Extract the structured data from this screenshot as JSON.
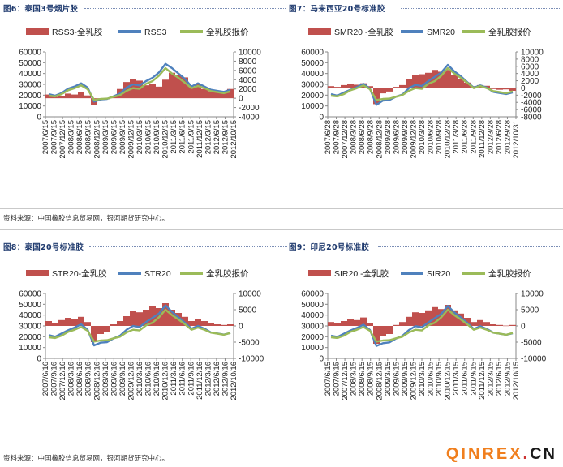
{
  "figures": [
    {
      "label": "图6：泰国3号烟片胶",
      "chart_index": 0
    },
    {
      "label": "图7：马来西亚20号标准胶",
      "chart_index": 1
    },
    {
      "label": "图8：泰国20号标准胶",
      "chart_index": 2
    },
    {
      "label": "图9：印尼20号标准胶",
      "chart_index": 3
    }
  ],
  "source_top": "资料来源：中国橡胶信息贸易网，银河期货研究中心。",
  "source_bottom": "资料来源：中国橡胶信息贸易网，银河期货研究中心。",
  "watermark": {
    "brand": "QINREX",
    "dot": ".",
    "tld": "CN"
  },
  "colors": {
    "spread_bar": "#c0504d",
    "grade_line": "#4f81bd",
    "latex_line": "#9bbb59"
  },
  "chart_data": [
    {
      "type": "bar+line",
      "legend_position": "top",
      "legend": [
        "RSS3-全乳胶",
        "RSS3",
        "全乳胶报价"
      ],
      "x_tick_labels": [
        "2007/6/15",
        "2007/9/15",
        "2007/12/15",
        "2008/3/15",
        "2008/6/15",
        "2008/9/15",
        "2008/12/15",
        "2009/3/15",
        "2009/6/15",
        "2009/9/15",
        "2009/12/15",
        "2010/3/15",
        "2010/6/15",
        "2010/9/15",
        "2010/12/15",
        "2011/3/15",
        "2011/6/15",
        "2011/9/15",
        "2011/12/15",
        "2012/3/15",
        "2012/6/15",
        "2012/9/15",
        "2012/10/15"
      ],
      "y_left": {
        "min": 0,
        "max": 60000,
        "ticks": [
          "0",
          "10000",
          "20000",
          "30000",
          "40000",
          "50000",
          "60000"
        ]
      },
      "y_right": {
        "min": -4000,
        "max": 10000,
        "ticks": [
          "-4000",
          "-2000",
          "0",
          "2000",
          "4000",
          "6000",
          "8000",
          "10000"
        ]
      },
      "series": [
        {
          "name": "RSS3-全乳胶",
          "axis": "right",
          "kind": "bar",
          "values": [
            800,
            300,
            400,
            1000,
            800,
            1300,
            600,
            -1500,
            -300,
            -200,
            500,
            2000,
            3500,
            4200,
            3800,
            2800,
            3000,
            2500,
            4000,
            5500,
            5000,
            4500,
            2500,
            3000,
            2000,
            1500,
            1500,
            1200,
            2000
          ]
        },
        {
          "name": "RSS3",
          "axis": "left",
          "kind": "line",
          "values": [
            21000,
            19500,
            22000,
            26000,
            28000,
            31000,
            27000,
            14000,
            16000,
            16500,
            19000,
            21500,
            27000,
            30000,
            29000,
            33000,
            36000,
            41000,
            49000,
            45000,
            40000,
            35000,
            28000,
            31000,
            28000,
            25000,
            24000,
            23000,
            25000
          ]
        },
        {
          "name": "全乳胶报价",
          "axis": "left",
          "kind": "line",
          "values": [
            19500,
            18800,
            21000,
            24500,
            26500,
            29000,
            25500,
            15500,
            16500,
            16800,
            18500,
            20000,
            24000,
            26500,
            25800,
            30500,
            33000,
            38000,
            45000,
            40000,
            36000,
            31500,
            26500,
            28500,
            26500,
            23800,
            22800,
            21800,
            23500
          ]
        }
      ]
    },
    {
      "type": "bar+line",
      "legend_position": "top",
      "legend": [
        "SMR20 -全乳胶",
        "SMR20",
        "全乳胶报价"
      ],
      "x_tick_labels": [
        "2007/6/28",
        "2007/9/28",
        "2007/12/28",
        "2008/3/28",
        "2008/6/28",
        "2008/9/28",
        "2008/12/28",
        "2009/3/28",
        "2009/6/28",
        "2009/9/28",
        "2009/12/28",
        "2010/3/28",
        "2010/6/28",
        "2010/9/28",
        "2010/12/28",
        "2011/3/28",
        "2011/6/28",
        "2011/9/28",
        "2011/12/28",
        "2012/3/28",
        "2012/6/28",
        "2012/9/28",
        "2012/10/31"
      ],
      "y_left": {
        "min": 0,
        "max": 60000,
        "ticks": [
          "0",
          "10000",
          "20000",
          "30000",
          "40000",
          "50000",
          "60000"
        ]
      },
      "y_right": {
        "min": -8000,
        "max": 10000,
        "ticks": [
          "-8000",
          "-6000",
          "-4000",
          "-2000",
          "0",
          "2000",
          "4000",
          "6000",
          "8000",
          "10000"
        ]
      },
      "series": [
        {
          "name": "SMR20 -全乳胶",
          "axis": "right",
          "kind": "bar",
          "values": [
            500,
            300,
            800,
            1000,
            900,
            1300,
            500,
            -4500,
            -1500,
            -1000,
            300,
            800,
            2500,
            3500,
            3800,
            4200,
            5000,
            4500,
            5000,
            3500,
            2500,
            1500,
            500,
            800,
            600,
            -300,
            -500,
            -400,
            -800
          ]
        },
        {
          "name": "SMR20",
          "axis": "left",
          "kind": "line",
          "values": [
            21000,
            19500,
            22500,
            25000,
            27500,
            30500,
            26000,
            11000,
            15000,
            15500,
            18500,
            20500,
            26500,
            29500,
            28500,
            33000,
            37000,
            41000,
            48000,
            42000,
            37500,
            32000,
            27000,
            29000,
            27000,
            23000,
            22000,
            21000,
            22500
          ]
        },
        {
          "name": "全乳胶报价",
          "axis": "left",
          "kind": "line",
          "values": [
            19500,
            18800,
            21000,
            24500,
            26500,
            29000,
            25500,
            15500,
            16500,
            16800,
            18500,
            20000,
            24000,
            26500,
            25800,
            30500,
            33000,
            38000,
            45000,
            40000,
            36000,
            31500,
            26500,
            28500,
            26500,
            23800,
            22800,
            21800,
            23500
          ]
        }
      ]
    },
    {
      "type": "bar+line",
      "legend_position": "top",
      "legend": [
        "STR20-全乳胶",
        "STR20",
        "全乳胶报价"
      ],
      "x_tick_labels": [
        "2007/6/16",
        "2007/9/16",
        "2007/12/16",
        "2008/3/16",
        "2008/6/16",
        "2008/9/16",
        "2008/12/16",
        "2009/3/16",
        "2009/6/16",
        "2009/9/16",
        "2009/12/16",
        "2010/3/16",
        "2010/6/16",
        "2010/9/16",
        "2010/12/16",
        "2011/3/16",
        "2011/6/16",
        "2011/9/16",
        "2011/12/16",
        "2012/3/16",
        "2012/6/16",
        "2012/9/16",
        "2012/10/16"
      ],
      "y_left": {
        "min": 0,
        "max": 60000,
        "ticks": [
          "0",
          "10000",
          "20000",
          "30000",
          "40000",
          "50000",
          "60000"
        ]
      },
      "y_right": {
        "min": -10000,
        "max": 10000,
        "ticks": [
          "-10000",
          "-5000",
          "0",
          "5000",
          "10000"
        ]
      },
      "series": [
        {
          "name": "STR20-全乳胶",
          "axis": "right",
          "kind": "bar",
          "values": [
            1500,
            1000,
            1800,
            2500,
            2000,
            2800,
            1200,
            -5000,
            -2500,
            -2000,
            500,
            1500,
            3000,
            4500,
            4200,
            5000,
            6000,
            5500,
            7000,
            5000,
            4000,
            2800,
            1500,
            2000,
            1500,
            800,
            500,
            300,
            500
          ]
        },
        {
          "name": "STR20",
          "axis": "left",
          "kind": "line",
          "values": [
            21500,
            20000,
            23000,
            26000,
            28500,
            31500,
            26500,
            12000,
            14500,
            15000,
            18500,
            21000,
            26500,
            30000,
            29000,
            33500,
            37500,
            41500,
            49000,
            43000,
            38000,
            33000,
            27500,
            30000,
            27500,
            24000,
            23000,
            22000,
            23500
          ]
        },
        {
          "name": "全乳胶报价",
          "axis": "left",
          "kind": "line",
          "values": [
            19500,
            18800,
            21000,
            24500,
            26500,
            29000,
            25500,
            15500,
            16500,
            16800,
            18500,
            20000,
            24000,
            26500,
            25800,
            30500,
            33000,
            38000,
            45000,
            40000,
            36000,
            31500,
            26500,
            28500,
            26500,
            23800,
            22800,
            21800,
            23500
          ]
        }
      ]
    },
    {
      "type": "bar+line",
      "legend_position": "top",
      "legend": [
        "SIR20 -全乳胶",
        "SIR20",
        "全乳胶报价"
      ],
      "x_tick_labels": [
        "2007/6/15",
        "2007/9/15",
        "2007/12/15",
        "2008/3/15",
        "2008/6/15",
        "2008/9/15",
        "2008/12/15",
        "2009/3/15",
        "2009/6/15",
        "2009/9/15",
        "2009/12/15",
        "2010/3/15",
        "2010/6/15",
        "2010/9/15",
        "2010/12/15",
        "2011/3/15",
        "2011/6/15",
        "2011/9/15",
        "2011/12/15",
        "2012/3/15",
        "2012/6/15",
        "2012/9/15",
        "2012/10/15"
      ],
      "y_left": {
        "min": 0,
        "max": 60000,
        "ticks": [
          "0",
          "10000",
          "20000",
          "30000",
          "40000",
          "50000",
          "60000"
        ]
      },
      "y_right": {
        "min": -10000,
        "max": 10000,
        "ticks": [
          "-10000",
          "-5000",
          "0",
          "5000",
          "10000"
        ]
      },
      "series": [
        {
          "name": "SIR20 -全乳胶",
          "axis": "right",
          "kind": "bar",
          "values": [
            1200,
            800,
            1500,
            2200,
            1800,
            2600,
            1000,
            -5500,
            -3000,
            -2500,
            300,
            1200,
            2800,
            4200,
            4000,
            4800,
            5800,
            5200,
            6500,
            4800,
            3800,
            2500,
            1200,
            1800,
            1200,
            500,
            300,
            100,
            300
          ]
        },
        {
          "name": "SIR20",
          "axis": "left",
          "kind": "line",
          "values": [
            21000,
            19800,
            22800,
            25800,
            28200,
            31200,
            26200,
            11500,
            14000,
            14800,
            18200,
            20800,
            26200,
            29800,
            28800,
            33200,
            37200,
            41200,
            48500,
            42500,
            37800,
            32800,
            27200,
            29800,
            27200,
            23800,
            22800,
            21800,
            23200
          ]
        },
        {
          "name": "全乳胶报价",
          "axis": "left",
          "kind": "line",
          "values": [
            19500,
            18800,
            21000,
            24500,
            26500,
            29000,
            25500,
            15500,
            16500,
            16800,
            18500,
            20000,
            24000,
            26500,
            25800,
            30500,
            33000,
            38000,
            45000,
            40000,
            36000,
            31500,
            26500,
            28500,
            26500,
            23800,
            22800,
            21800,
            23500
          ]
        }
      ]
    }
  ]
}
